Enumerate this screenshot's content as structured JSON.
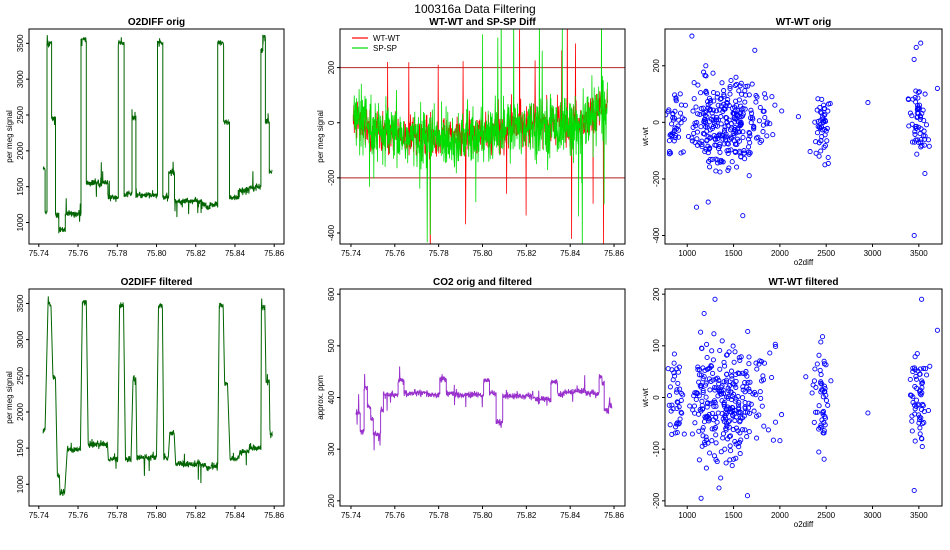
{
  "suptitle": "100316a   Data Filtering",
  "colors": {
    "green": "#006400",
    "red": "#ff0000",
    "lime": "#00dd00",
    "purple": "#9932cc",
    "blue": "#0000ff",
    "hline": "#b22222"
  },
  "chart_data": [
    {
      "id": "p1",
      "type": "line",
      "title": "O2DIFF orig",
      "xlabel": "",
      "ylabel": "per meg signal",
      "xlim": [
        75.735,
        75.865
      ],
      "ylim": [
        700,
        3700
      ],
      "xticks": [
        75.74,
        75.76,
        75.78,
        75.8,
        75.82,
        75.84,
        75.86
      ],
      "xtick_labels": [
        "75.74",
        "75.76",
        "75.78",
        "75.80",
        "75.82",
        "75.84",
        "75.86"
      ],
      "yticks": [
        1000,
        1500,
        2000,
        2500,
        3000,
        3500
      ],
      "ytick_labels": [
        "1000",
        "1500",
        "2000",
        "2500",
        "3000",
        "3500"
      ],
      "series": [
        {
          "name": "O2DIFF",
          "color": "green",
          "kind": "line",
          "segments": [
            [
              75.7422,
              75.7432,
              1750
            ],
            [
              75.7432,
              75.7442,
              1150
            ],
            [
              75.7442,
              75.7465,
              3500
            ],
            [
              75.7465,
              75.7485,
              2450
            ],
            [
              75.7485,
              75.7502,
              1100
            ],
            [
              75.7502,
              75.7535,
              900
            ],
            [
              75.7535,
              75.7615,
              1120
            ],
            [
              75.7615,
              75.7642,
              3550
            ],
            [
              75.7642,
              75.7752,
              1550
            ],
            [
              75.7752,
              75.7805,
              1350
            ],
            [
              75.7805,
              75.7835,
              3500
            ],
            [
              75.7835,
              75.7875,
              1400
            ],
            [
              75.7875,
              75.7895,
              2450
            ],
            [
              75.7895,
              75.8005,
              1380
            ],
            [
              75.8005,
              75.8032,
              3500
            ],
            [
              75.8032,
              75.8062,
              1350
            ],
            [
              75.8062,
              75.8092,
              1700
            ],
            [
              75.8092,
              75.8232,
              1300
            ],
            [
              75.8232,
              75.8252,
              1250
            ],
            [
              75.8252,
              75.8272,
              1200
            ],
            [
              75.8272,
              75.8312,
              1250
            ],
            [
              75.8312,
              75.8342,
              3500
            ],
            [
              75.8342,
              75.8372,
              2400
            ],
            [
              75.8372,
              75.8422,
              1350
            ],
            [
              75.8422,
              75.8472,
              1450
            ],
            [
              75.8472,
              75.8532,
              1500
            ],
            [
              75.8532,
              75.8542,
              3400
            ],
            [
              75.8542,
              75.8555,
              3600
            ],
            [
              75.8555,
              75.8575,
              2400
            ],
            [
              75.8575,
              75.859,
              1700
            ]
          ]
        }
      ]
    },
    {
      "id": "p2",
      "type": "line",
      "title": "WT-WT and SP-SP Diff",
      "xlabel": "",
      "ylabel": "per meg signal",
      "xlim": [
        75.735,
        75.865
      ],
      "ylim": [
        -440,
        340
      ],
      "xticks": [
        75.74,
        75.76,
        75.78,
        75.8,
        75.82,
        75.84,
        75.86
      ],
      "xtick_labels": [
        "75.74",
        "75.76",
        "75.78",
        "75.80",
        "75.82",
        "75.84",
        "75.86"
      ],
      "yticks": [
        -400,
        -200,
        0,
        200
      ],
      "ytick_labels": [
        "-400",
        "-200",
        "0",
        "200"
      ],
      "hlines": [
        200,
        -200
      ],
      "legend": [
        {
          "label": "WT-WT",
          "color": "red"
        },
        {
          "label": "SP-SP",
          "color": "lime"
        }
      ],
      "series": [
        {
          "name": "WT-WT",
          "color": "red",
          "kind": "noise",
          "trend": [
            [
              75.741,
              20
            ],
            [
              75.75,
              -30
            ],
            [
              75.77,
              -50
            ],
            [
              75.8,
              -50
            ],
            [
              75.82,
              0
            ],
            [
              75.845,
              -10
            ],
            [
              75.857,
              70
            ]
          ],
          "amplitude": 60
        },
        {
          "name": "SP-SP",
          "color": "lime",
          "kind": "noise",
          "trend": [
            [
              75.741,
              20
            ],
            [
              75.75,
              -40
            ],
            [
              75.77,
              -60
            ],
            [
              75.8,
              -55
            ],
            [
              75.82,
              -5
            ],
            [
              75.845,
              -15
            ],
            [
              75.857,
              60
            ]
          ],
          "amplitude": 90
        }
      ]
    },
    {
      "id": "p3",
      "type": "scatter",
      "title": "WT-WT orig",
      "xlabel": "o2diff",
      "ylabel": "wt-wt",
      "xlim": [
        760,
        3750
      ],
      "ylim": [
        -430,
        330
      ],
      "xticks": [
        1000,
        1500,
        2000,
        2500,
        3000,
        3500
      ],
      "xtick_labels": [
        "1000",
        "1500",
        "2000",
        "2500",
        "3000",
        "3500"
      ],
      "yticks": [
        -400,
        -200,
        0,
        200
      ],
      "ytick_labels": [
        "-400",
        "-200",
        "0",
        "200"
      ],
      "clusters": [
        [
          880,
          40,
          0,
          60,
          40
        ],
        [
          1200,
          60,
          0,
          80,
          40
        ],
        [
          1450,
          200,
          -10,
          80,
          260
        ],
        [
          2450,
          40,
          0,
          60,
          50
        ],
        [
          3500,
          50,
          0,
          70,
          60
        ]
      ],
      "outliers": [
        [
          1050,
          305
        ],
        [
          1200,
          200
        ],
        [
          1100,
          -300
        ],
        [
          3450,
          -400
        ],
        [
          3520,
          280
        ],
        [
          3700,
          120
        ],
        [
          2950,
          70
        ],
        [
          1600,
          -330
        ],
        [
          2200,
          20
        ],
        [
          2020,
          40
        ]
      ]
    },
    {
      "id": "p4",
      "type": "line",
      "title": "O2DIFF filtered",
      "xlabel": "",
      "ylabel": "per meg signal",
      "xlim": [
        75.735,
        75.865
      ],
      "ylim": [
        700,
        3700
      ],
      "xticks": [
        75.74,
        75.76,
        75.78,
        75.8,
        75.82,
        75.84,
        75.86
      ],
      "xtick_labels": [
        "75.74",
        "75.76",
        "75.78",
        "75.80",
        "75.82",
        "75.84",
        "75.86"
      ],
      "yticks": [
        1000,
        1500,
        2000,
        2500,
        3000,
        3500
      ],
      "ytick_labels": [
        "1000",
        "1500",
        "2000",
        "2500",
        "3000",
        "3500"
      ],
      "series": [
        {
          "name": "O2DIFF filtered",
          "color": "green",
          "kind": "line",
          "segments": [
            [
              75.7422,
              75.7432,
              1750
            ],
            [
              75.7447,
              75.7462,
              3480
            ],
            [
              75.7472,
              75.7485,
              2480
            ],
            [
              75.7495,
              75.7505,
              1120
            ],
            [
              75.7508,
              75.7532,
              880
            ],
            [
              75.7545,
              75.7612,
              1480
            ],
            [
              75.7622,
              75.7642,
              3520
            ],
            [
              75.7652,
              75.775,
              1550
            ],
            [
              75.7755,
              75.7802,
              1350
            ],
            [
              75.7812,
              75.7832,
              3470
            ],
            [
              75.7842,
              75.787,
              1350
            ],
            [
              75.788,
              75.7895,
              2450
            ],
            [
              75.79,
              75.8,
              1370
            ],
            [
              75.801,
              75.803,
              3470
            ],
            [
              75.8037,
              75.806,
              1380
            ],
            [
              75.8068,
              75.809,
              1700
            ],
            [
              75.8098,
              75.823,
              1280
            ],
            [
              75.8237,
              75.825,
              1250
            ],
            [
              75.8255,
              75.827,
              1220
            ],
            [
              75.8277,
              75.8312,
              1250
            ],
            [
              75.832,
              75.834,
              3470
            ],
            [
              75.8347,
              75.8362,
              2400
            ],
            [
              75.8375,
              75.842,
              1350
            ],
            [
              75.8425,
              75.847,
              1450
            ],
            [
              75.8475,
              75.8532,
              1500
            ],
            [
              75.8535,
              75.8552,
              3450
            ],
            [
              75.8558,
              75.8575,
              2420
            ],
            [
              75.8578,
              75.859,
              1700
            ]
          ]
        }
      ]
    },
    {
      "id": "p5",
      "type": "line",
      "title": "CO2 orig and filtered",
      "xlabel": "",
      "ylabel": "approx. ppm",
      "xlim": [
        75.735,
        75.865
      ],
      "ylim": [
        190,
        610
      ],
      "xticks": [
        75.74,
        75.76,
        75.78,
        75.8,
        75.82,
        75.84,
        75.86
      ],
      "xtick_labels": [
        "75.74",
        "75.76",
        "75.78",
        "75.80",
        "75.82",
        "75.84",
        "75.86"
      ],
      "yticks": [
        200,
        300,
        400,
        500,
        600
      ],
      "ytick_labels": [
        "200",
        "300",
        "400",
        "500",
        "600"
      ],
      "series": [
        {
          "name": "CO2",
          "color": "purple",
          "kind": "line",
          "segments": [
            [
              75.7422,
              75.7442,
              370
            ],
            [
              75.7442,
              75.746,
              335
            ],
            [
              75.746,
              75.7475,
              418
            ],
            [
              75.7475,
              75.749,
              380
            ],
            [
              75.749,
              75.7502,
              360
            ],
            [
              75.7502,
              75.7535,
              330
            ],
            [
              75.7535,
              75.7548,
              375
            ],
            [
              75.7548,
              75.7615,
              405
            ],
            [
              75.7615,
              75.7642,
              433
            ],
            [
              75.7642,
              75.775,
              408
            ],
            [
              75.775,
              75.7805,
              405
            ],
            [
              75.7805,
              75.7835,
              435
            ],
            [
              75.7835,
              75.787,
              408
            ],
            [
              75.787,
              75.7895,
              405
            ],
            [
              75.7895,
              75.8005,
              405
            ],
            [
              75.8005,
              75.8032,
              433
            ],
            [
              75.8032,
              75.8062,
              408
            ],
            [
              75.8062,
              75.8092,
              353
            ],
            [
              75.8092,
              75.823,
              403
            ],
            [
              75.823,
              75.8312,
              397
            ],
            [
              75.8312,
              75.8342,
              430
            ],
            [
              75.8342,
              75.8372,
              405
            ],
            [
              75.8372,
              75.8422,
              410
            ],
            [
              75.8422,
              75.8472,
              412
            ],
            [
              75.8472,
              75.8532,
              408
            ],
            [
              75.8532,
              75.8545,
              440
            ],
            [
              75.8545,
              75.8555,
              430
            ],
            [
              75.8555,
              75.8575,
              375
            ],
            [
              75.8575,
              75.859,
              385
            ]
          ]
        }
      ]
    },
    {
      "id": "p6",
      "type": "scatter",
      "title": "WT-WT filtered",
      "xlabel": "o2diff",
      "ylabel": "wt-wt",
      "xlim": [
        760,
        3750
      ],
      "ylim": [
        -210,
        210
      ],
      "xticks": [
        1000,
        1500,
        2000,
        2500,
        3000,
        3500
      ],
      "xtick_labels": [
        "1000",
        "1500",
        "2000",
        "2500",
        "3000",
        "3500"
      ],
      "yticks": [
        -200,
        -100,
        0,
        100,
        200
      ],
      "ytick_labels": [
        "-200",
        "-100",
        "0",
        "100",
        "200"
      ],
      "clusters": [
        [
          880,
          40,
          0,
          40,
          40
        ],
        [
          1200,
          60,
          0,
          55,
          40
        ],
        [
          1450,
          200,
          -10,
          55,
          260
        ],
        [
          2450,
          40,
          0,
          45,
          50
        ],
        [
          3500,
          50,
          0,
          50,
          60
        ]
      ],
      "outliers": [
        [
          1300,
          190
        ],
        [
          3530,
          190
        ],
        [
          3700,
          130
        ],
        [
          2950,
          -30
        ],
        [
          2280,
          40
        ],
        [
          1650,
          -190
        ],
        [
          1150,
          -195
        ],
        [
          3450,
          -180
        ]
      ]
    }
  ]
}
